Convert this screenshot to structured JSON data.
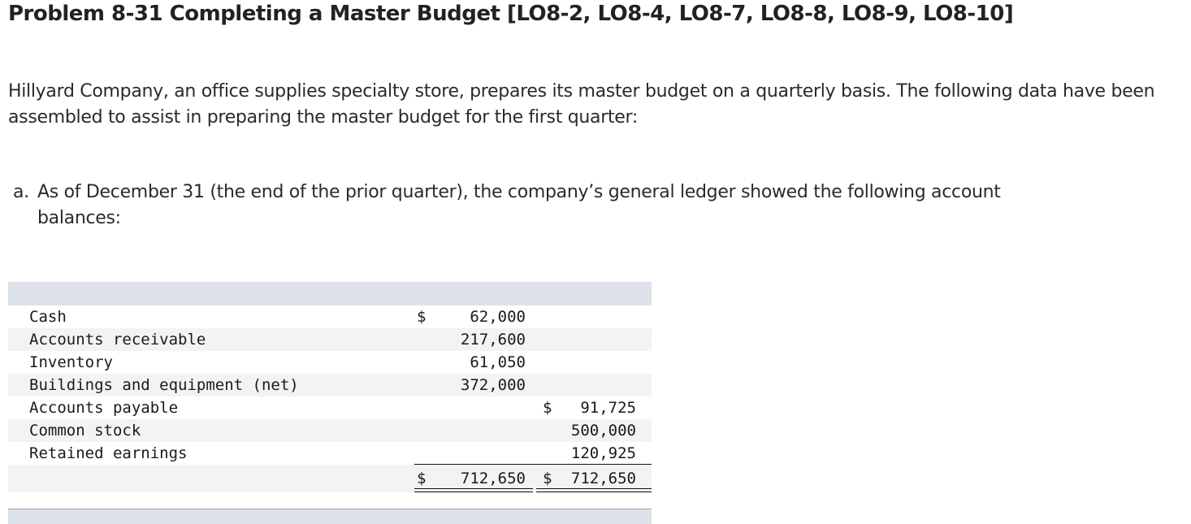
{
  "problem": {
    "title": "Problem 8-31 Completing a Master Budget [LO8-2, LO8-4, LO8-7, LO8-8, LO8-9, LO8-10]",
    "intro": "Hillyard Company, an office supplies specialty store, prepares its master budget on a quarterly basis. The following data have been assembled to assist in preparing the master budget for the first quarter:",
    "item_a": {
      "marker": "a.",
      "text_line1": "As of December 31 (the end of the prior quarter), the company’s general ledger showed the following account",
      "text_line2": "balances:"
    }
  },
  "ledger": {
    "rows": [
      {
        "account": "Cash",
        "dollar_debit": "$",
        "debit": "62,000",
        "dollar_credit": "",
        "credit": ""
      },
      {
        "account": "Accounts receivable",
        "dollar_debit": "",
        "debit": "217,600",
        "dollar_credit": "",
        "credit": ""
      },
      {
        "account": "Inventory",
        "dollar_debit": "",
        "debit": "61,050",
        "dollar_credit": "",
        "credit": ""
      },
      {
        "account": "Buildings and equipment (net)",
        "dollar_debit": "",
        "debit": "372,000",
        "dollar_credit": "",
        "credit": ""
      },
      {
        "account": "Accounts payable",
        "dollar_debit": "",
        "debit": "",
        "dollar_credit": "$",
        "credit": "91,725"
      },
      {
        "account": "Common stock",
        "dollar_debit": "",
        "debit": "",
        "dollar_credit": "",
        "credit": "500,000"
      },
      {
        "account": "Retained earnings",
        "dollar_debit": "",
        "debit": "",
        "dollar_credit": "",
        "credit": "120,925"
      }
    ],
    "total": {
      "dollar_debit": "$",
      "debit": "712,650",
      "dollar_credit": "$",
      "credit": "712,650"
    }
  }
}
